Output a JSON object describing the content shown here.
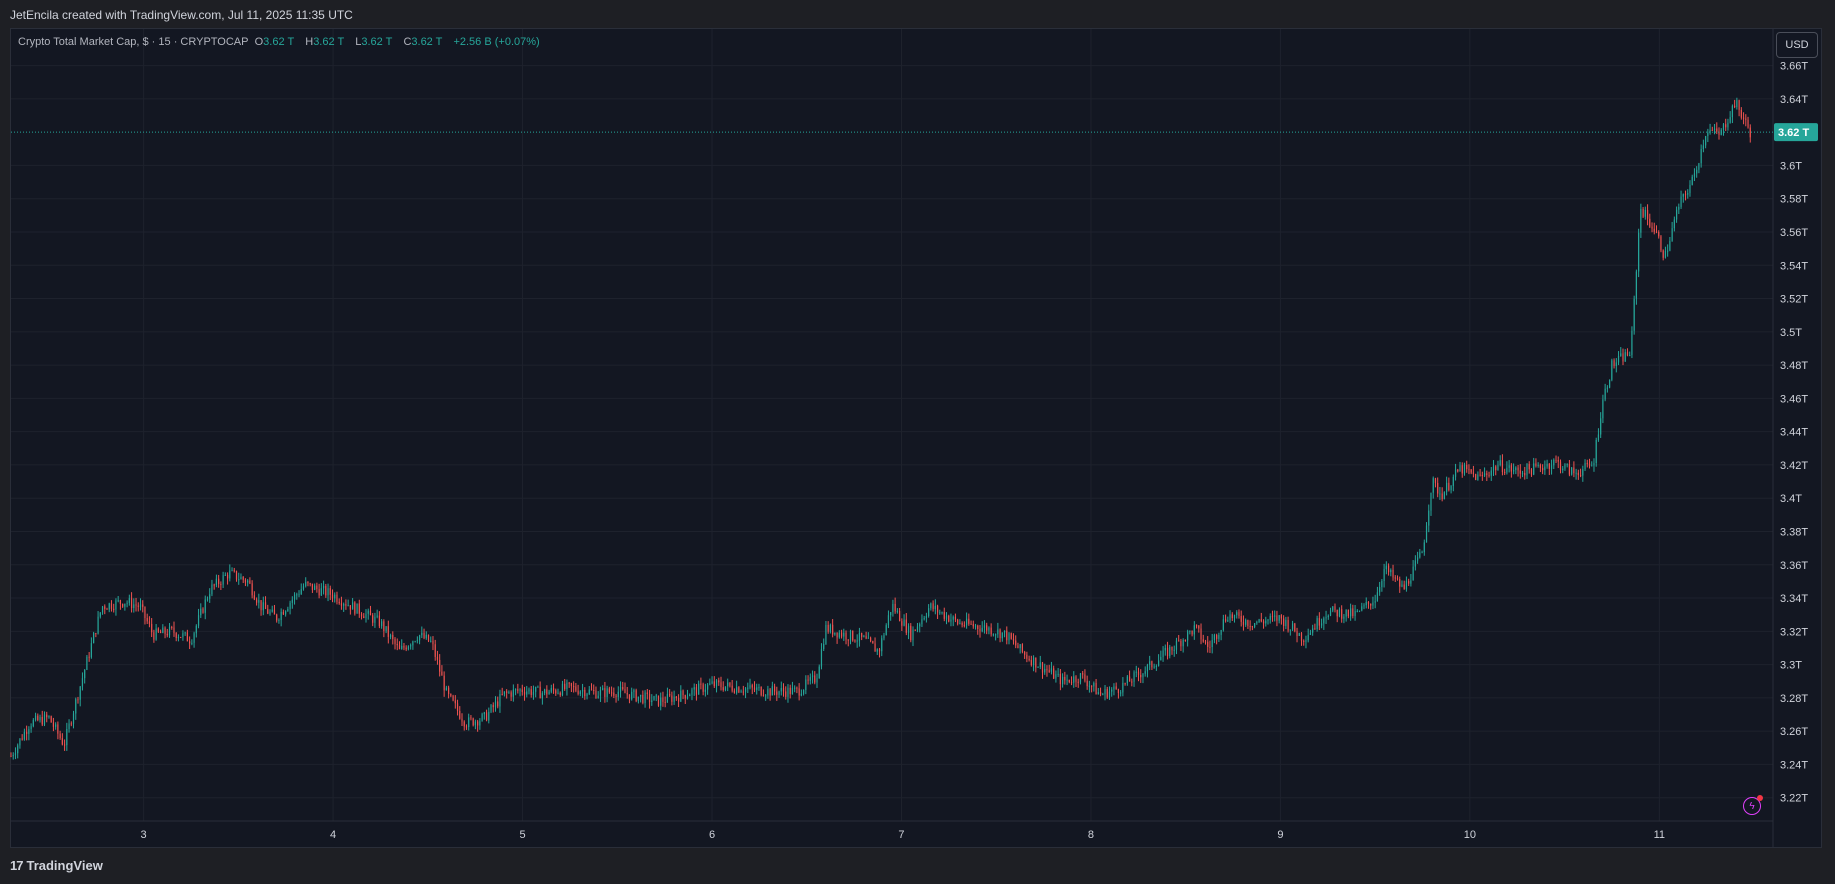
{
  "header": {
    "credit": "JetEncila created with TradingView.com, Jul 11, 2025 11:35 UTC"
  },
  "legend": {
    "symbol": "Crypto Total Market Cap, $ · 15 · CRYPTOCAP",
    "open_label": "O",
    "open_value": "3.62 T",
    "high_label": "H",
    "high_value": "3.62 T",
    "low_label": "L",
    "low_value": "3.62 T",
    "close_label": "C",
    "close_value": "3.62 T",
    "change": "+2.56 B (+0.07%)"
  },
  "price_axis": {
    "currency": "USD",
    "last_price_label": "3.62 T"
  },
  "footer": {
    "brand": "TradingView"
  },
  "icons": {
    "logo": "tradingview-logo-icon",
    "flash": "lightning-icon"
  },
  "colors": {
    "up": "#26a69a",
    "down": "#ef5350",
    "background": "#131722",
    "grid": "#1e222d",
    "last_price": "#26a69a"
  },
  "chart_data": {
    "type": "candlestick",
    "interval": "15",
    "x_ticks": [
      "3",
      "4",
      "5",
      "6",
      "7",
      "8",
      "9",
      "10",
      "11"
    ],
    "x_tick_values": [
      3,
      4,
      5,
      6,
      7,
      8,
      9,
      10,
      11
    ],
    "xlim": [
      2.3,
      11.6
    ],
    "y_ticks": [
      3.22,
      3.24,
      3.26,
      3.28,
      3.3,
      3.32,
      3.34,
      3.36,
      3.38,
      3.4,
      3.42,
      3.44,
      3.46,
      3.48,
      3.5,
      3.52,
      3.54,
      3.56,
      3.58,
      3.6,
      3.64,
      3.66
    ],
    "y_tick_labels": [
      "3.22T",
      "3.24T",
      "3.26T",
      "3.28T",
      "3.3T",
      "3.32T",
      "3.34T",
      "3.36T",
      "3.38T",
      "3.4T",
      "3.42T",
      "3.44T",
      "3.46T",
      "3.48T",
      "3.5T",
      "3.52T",
      "3.54T",
      "3.56T",
      "3.58T",
      "3.6T",
      "3.64T",
      "3.66T"
    ],
    "ylim": [
      3.206,
      3.682
    ],
    "last_price": 3.62,
    "grid": true,
    "price_path": [
      [
        2.3,
        3.245
      ],
      [
        2.4,
        3.265
      ],
      [
        2.5,
        3.268
      ],
      [
        2.58,
        3.252
      ],
      [
        2.66,
        3.285
      ],
      [
        2.72,
        3.31
      ],
      [
        2.78,
        3.335
      ],
      [
        2.9,
        3.338
      ],
      [
        2.98,
        3.335
      ],
      [
        3.05,
        3.318
      ],
      [
        3.15,
        3.32
      ],
      [
        3.25,
        3.315
      ],
      [
        3.35,
        3.345
      ],
      [
        3.45,
        3.355
      ],
      [
        3.55,
        3.35
      ],
      [
        3.62,
        3.335
      ],
      [
        3.7,
        3.328
      ],
      [
        3.85,
        3.348
      ],
      [
        4.0,
        3.342
      ],
      [
        4.1,
        3.335
      ],
      [
        4.25,
        3.325
      ],
      [
        4.35,
        3.308
      ],
      [
        4.45,
        3.318
      ],
      [
        4.52,
        3.313
      ],
      [
        4.6,
        3.282
      ],
      [
        4.7,
        3.265
      ],
      [
        4.8,
        3.268
      ],
      [
        4.9,
        3.282
      ],
      [
        5.0,
        3.285
      ],
      [
        5.1,
        3.283
      ],
      [
        5.25,
        3.286
      ],
      [
        5.4,
        3.283
      ],
      [
        5.5,
        3.284
      ],
      [
        5.6,
        3.281
      ],
      [
        5.72,
        3.278
      ],
      [
        5.85,
        3.282
      ],
      [
        6.0,
        3.288
      ],
      [
        6.15,
        3.286
      ],
      [
        6.3,
        3.284
      ],
      [
        6.45,
        3.284
      ],
      [
        6.55,
        3.292
      ],
      [
        6.6,
        3.322
      ],
      [
        6.7,
        3.318
      ],
      [
        6.8,
        3.315
      ],
      [
        6.88,
        3.308
      ],
      [
        6.95,
        3.336
      ],
      [
        7.05,
        3.318
      ],
      [
        7.15,
        3.335
      ],
      [
        7.3,
        3.325
      ],
      [
        7.45,
        3.322
      ],
      [
        7.55,
        3.318
      ],
      [
        7.65,
        3.306
      ],
      [
        7.75,
        3.298
      ],
      [
        7.85,
        3.29
      ],
      [
        7.95,
        3.293
      ],
      [
        8.05,
        3.282
      ],
      [
        8.15,
        3.286
      ],
      [
        8.3,
        3.298
      ],
      [
        8.45,
        3.312
      ],
      [
        8.55,
        3.322
      ],
      [
        8.62,
        3.31
      ],
      [
        8.72,
        3.33
      ],
      [
        8.85,
        3.325
      ],
      [
        9.0,
        3.328
      ],
      [
        9.12,
        3.316
      ],
      [
        9.25,
        3.332
      ],
      [
        9.4,
        3.33
      ],
      [
        9.5,
        3.34
      ],
      [
        9.55,
        3.358
      ],
      [
        9.65,
        3.345
      ],
      [
        9.75,
        3.368
      ],
      [
        9.8,
        3.41
      ],
      [
        9.85,
        3.402
      ],
      [
        9.95,
        3.418
      ],
      [
        10.05,
        3.412
      ],
      [
        10.15,
        3.42
      ],
      [
        10.25,
        3.416
      ],
      [
        10.35,
        3.418
      ],
      [
        10.45,
        3.422
      ],
      [
        10.55,
        3.415
      ],
      [
        10.65,
        3.42
      ],
      [
        10.7,
        3.458
      ],
      [
        10.75,
        3.48
      ],
      [
        10.85,
        3.488
      ],
      [
        10.9,
        3.575
      ],
      [
        10.98,
        3.56
      ],
      [
        11.03,
        3.545
      ],
      [
        11.1,
        3.575
      ],
      [
        11.18,
        3.592
      ],
      [
        11.25,
        3.622
      ],
      [
        11.32,
        3.618
      ],
      [
        11.4,
        3.638
      ],
      [
        11.48,
        3.62
      ]
    ]
  }
}
